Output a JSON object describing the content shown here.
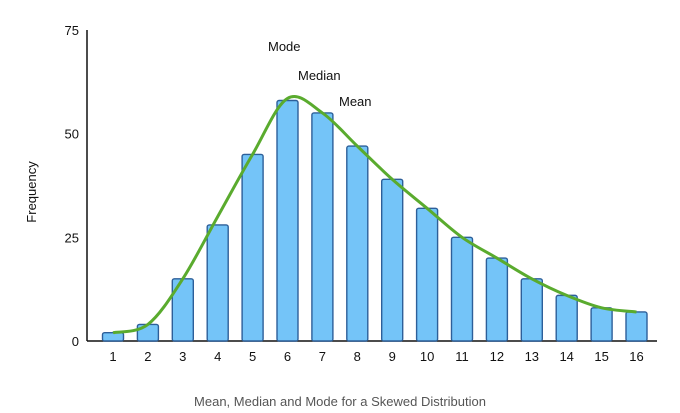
{
  "caption": "Mean, Median and Mode for a Skewed Distribution",
  "chart_data": {
    "type": "bar",
    "categories": [
      "1",
      "2",
      "3",
      "4",
      "5",
      "6",
      "7",
      "8",
      "9",
      "10",
      "11",
      "12",
      "13",
      "14",
      "15",
      "16"
    ],
    "values": [
      2,
      4,
      15,
      28,
      45,
      58,
      55,
      47,
      39,
      32,
      25,
      20,
      15,
      11,
      8,
      7
    ],
    "curve": [
      [
        1,
        2
      ],
      [
        2,
        4
      ],
      [
        3,
        15
      ],
      [
        4,
        30
      ],
      [
        5,
        45
      ],
      [
        6,
        58.5
      ],
      [
        7,
        55
      ],
      [
        8,
        47
      ],
      [
        9,
        39
      ],
      [
        10,
        32
      ],
      [
        11,
        25
      ],
      [
        12,
        20
      ],
      [
        13,
        15
      ],
      [
        14,
        11
      ],
      [
        15,
        8
      ],
      [
        16,
        7
      ]
    ],
    "ylabel": "Frequency",
    "xlabel": "",
    "ylim": [
      0,
      75
    ],
    "yticks": [
      0,
      25,
      50,
      75
    ],
    "grid": false,
    "annotations": [
      "Mode",
      "Median",
      "Mean"
    ],
    "colors": {
      "bar_fill": "#74c4f8",
      "bar_stroke": "#2d5f99",
      "curve": "#5aab2e",
      "axis": "#111111"
    }
  }
}
